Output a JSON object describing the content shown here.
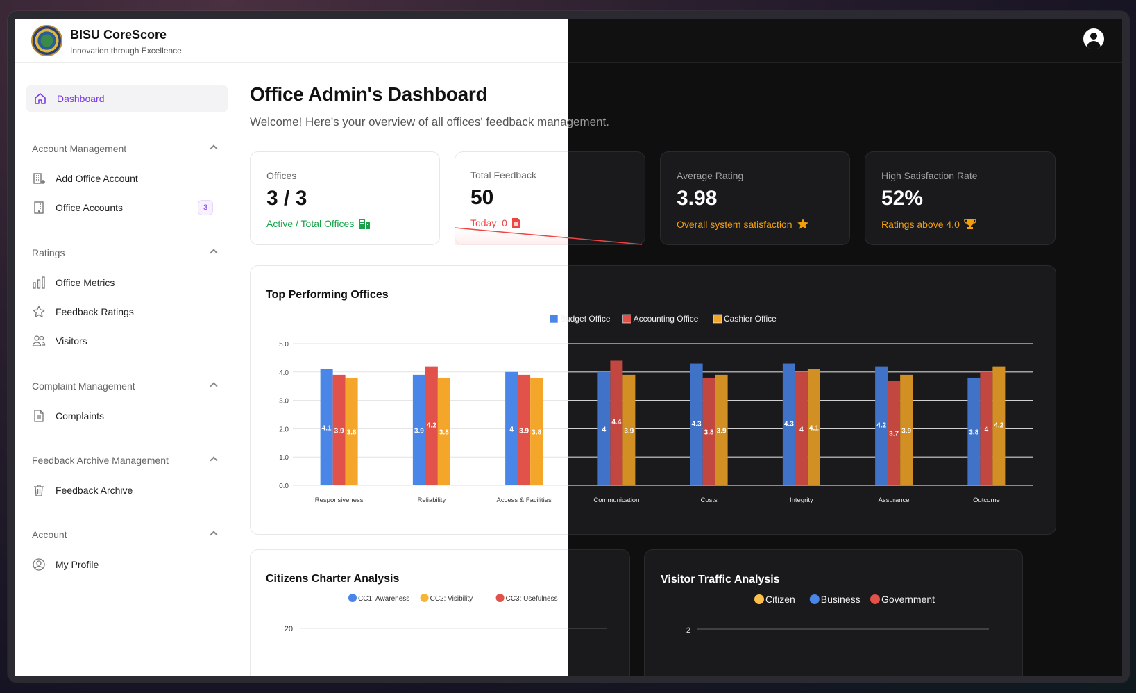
{
  "brand": {
    "title": "BISU CoreScore",
    "subtitle": "Innovation through Excellence"
  },
  "sidebar": {
    "dashboard": "Dashboard",
    "sections": [
      {
        "title": "Account Management",
        "items": [
          {
            "label": "Add Office Account",
            "icon": "building-add-icon"
          },
          {
            "label": "Office Accounts",
            "icon": "building-icon",
            "badge": "3"
          }
        ]
      },
      {
        "title": "Ratings",
        "items": [
          {
            "label": "Office Metrics",
            "icon": "bar-chart-icon"
          },
          {
            "label": "Feedback Ratings",
            "icon": "star-icon"
          },
          {
            "label": "Visitors",
            "icon": "users-icon"
          }
        ]
      },
      {
        "title": "Complaint Management",
        "items": [
          {
            "label": "Complaints",
            "icon": "document-icon"
          }
        ]
      },
      {
        "title": "Feedback Archive Management",
        "items": [
          {
            "label": "Feedback Archive",
            "icon": "trash-icon"
          }
        ]
      },
      {
        "title": "Account",
        "items": [
          {
            "label": "My Profile",
            "icon": "user-circle-icon"
          }
        ]
      }
    ]
  },
  "page": {
    "title": "Office Admin's Dashboard",
    "subtitle": "Welcome! Here's your overview of all offices' feedback management."
  },
  "stats": [
    {
      "label": "Offices",
      "value": "3 / 3",
      "note": "Active / Total Offices",
      "note_color": "#16a34a"
    },
    {
      "label": "Total Feedback",
      "value": "50",
      "note": "Today: 0",
      "note_color": "#ef4444"
    },
    {
      "label": "Average Rating",
      "value": "3.98",
      "note": "Overall system satisfaction",
      "note_color": "#f59e0b"
    },
    {
      "label": "High Satisfaction Rate",
      "value": "52%",
      "note": "Ratings above 4.0",
      "note_color": "#f59e0b"
    }
  ],
  "top_chart_title": "Top Performing Offices",
  "citizens_chart_title": "Citizens Charter Analysis",
  "visitor_chart_title": "Visitor Traffic Analysis",
  "chart_data": [
    {
      "type": "bar",
      "title": "Top Performing Offices",
      "categories": [
        "Responsiveness",
        "Reliability",
        "Access & Facilities",
        "Communication",
        "Costs",
        "Integrity",
        "Assurance",
        "Outcome"
      ],
      "series": [
        {
          "name": "Budget Office",
          "color": "#4a86e8",
          "values": [
            4.1,
            3.9,
            4,
            4,
            4.3,
            4.3,
            4.2,
            3.8
          ]
        },
        {
          "name": "Accounting Office",
          "color": "#e0524a",
          "values": [
            3.9,
            4.2,
            3.9,
            4.4,
            3.8,
            4,
            3.7,
            4
          ]
        },
        {
          "name": "Cashier Office",
          "color": "#f4a62a",
          "values": [
            3.8,
            3.8,
            3.8,
            3.9,
            3.9,
            4.1,
            3.9,
            4.2
          ]
        }
      ],
      "ylim": [
        0,
        5
      ],
      "yticks": [
        "0.0",
        "1.0",
        "2.0",
        "3.0",
        "4.0",
        "5.0"
      ],
      "legend": "top-center",
      "grid": true
    },
    {
      "type": "line",
      "title": "Citizens Charter Analysis",
      "series": [
        {
          "name": "CC1: Awareness",
          "color": "#4a86e8"
        },
        {
          "name": "CC2: Visibility",
          "color": "#f4b63a"
        },
        {
          "name": "CC3: Usefulness",
          "color": "#e0524a"
        }
      ],
      "yticks": [
        "20"
      ],
      "legend": "top-center"
    },
    {
      "type": "line",
      "title": "Visitor Traffic Analysis",
      "series": [
        {
          "name": "Citizen",
          "color": "#fbbf4a"
        },
        {
          "name": "Business",
          "color": "#4a86e8"
        },
        {
          "name": "Government",
          "color": "#e0524a"
        }
      ],
      "yticks": [
        "2"
      ],
      "legend": "top-center"
    }
  ]
}
